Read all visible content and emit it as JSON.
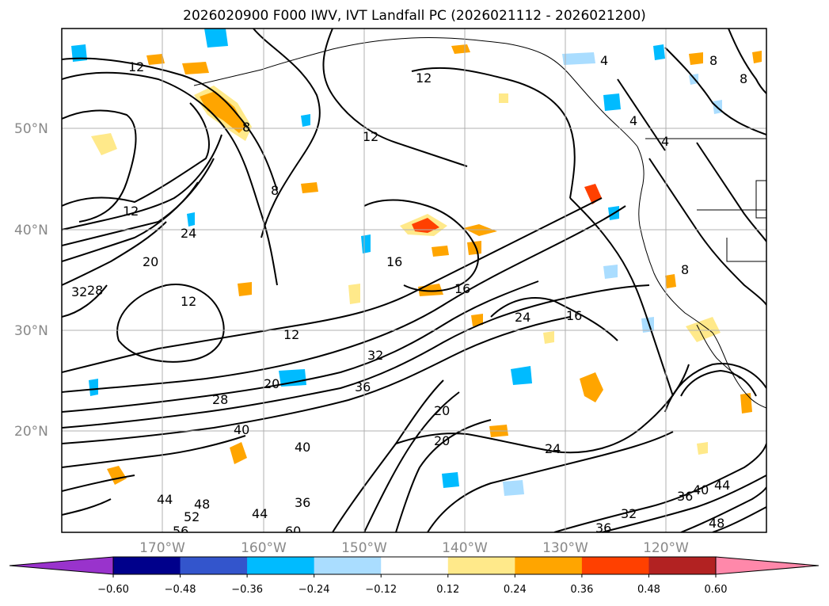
{
  "title": "2026020900 F000 IWV, IVT Landfall PC (2026021112 - 2026021200)",
  "lat_labels": [
    "50°N",
    "40°N",
    "30°N",
    "20°N"
  ],
  "lon_labels": [
    "170°W",
    "160°W",
    "150°W",
    "140°W",
    "130°W",
    "120°W"
  ],
  "colorbar": {
    "extend_low_color": "#9933cc",
    "extend_high_color": "#ff88aa",
    "colors": [
      "#00008b",
      "#3355cc",
      "#00bbff",
      "#aaddff",
      "#ffffff",
      "#ffe98a",
      "#ffa500",
      "#ff4000",
      "#b22222"
    ],
    "ticks": [
      "−0.60",
      "−0.48",
      "−0.36",
      "−0.24",
      "−0.12",
      "0.12",
      "0.24",
      "0.36",
      "0.48",
      "0.60"
    ]
  },
  "contour_labels": [
    "12",
    "12",
    "12",
    "12",
    "12",
    "12",
    "8",
    "8",
    "8",
    "8",
    "8",
    "4",
    "4",
    "4",
    "16",
    "16",
    "16",
    "20",
    "20",
    "20",
    "20",
    "24",
    "24",
    "24",
    "28",
    "28",
    "32",
    "32",
    "32",
    "36",
    "36",
    "36",
    "36",
    "40",
    "40",
    "40",
    "44",
    "44",
    "44",
    "48",
    "48",
    "52",
    "56",
    "60"
  ],
  "colors": {
    "blue_spot": "#00bbff",
    "light_blue_spot": "#aaddff",
    "yellow_spot": "#ffe98a",
    "orange_spot": "#ffa500",
    "red_spot": "#ff4000"
  }
}
